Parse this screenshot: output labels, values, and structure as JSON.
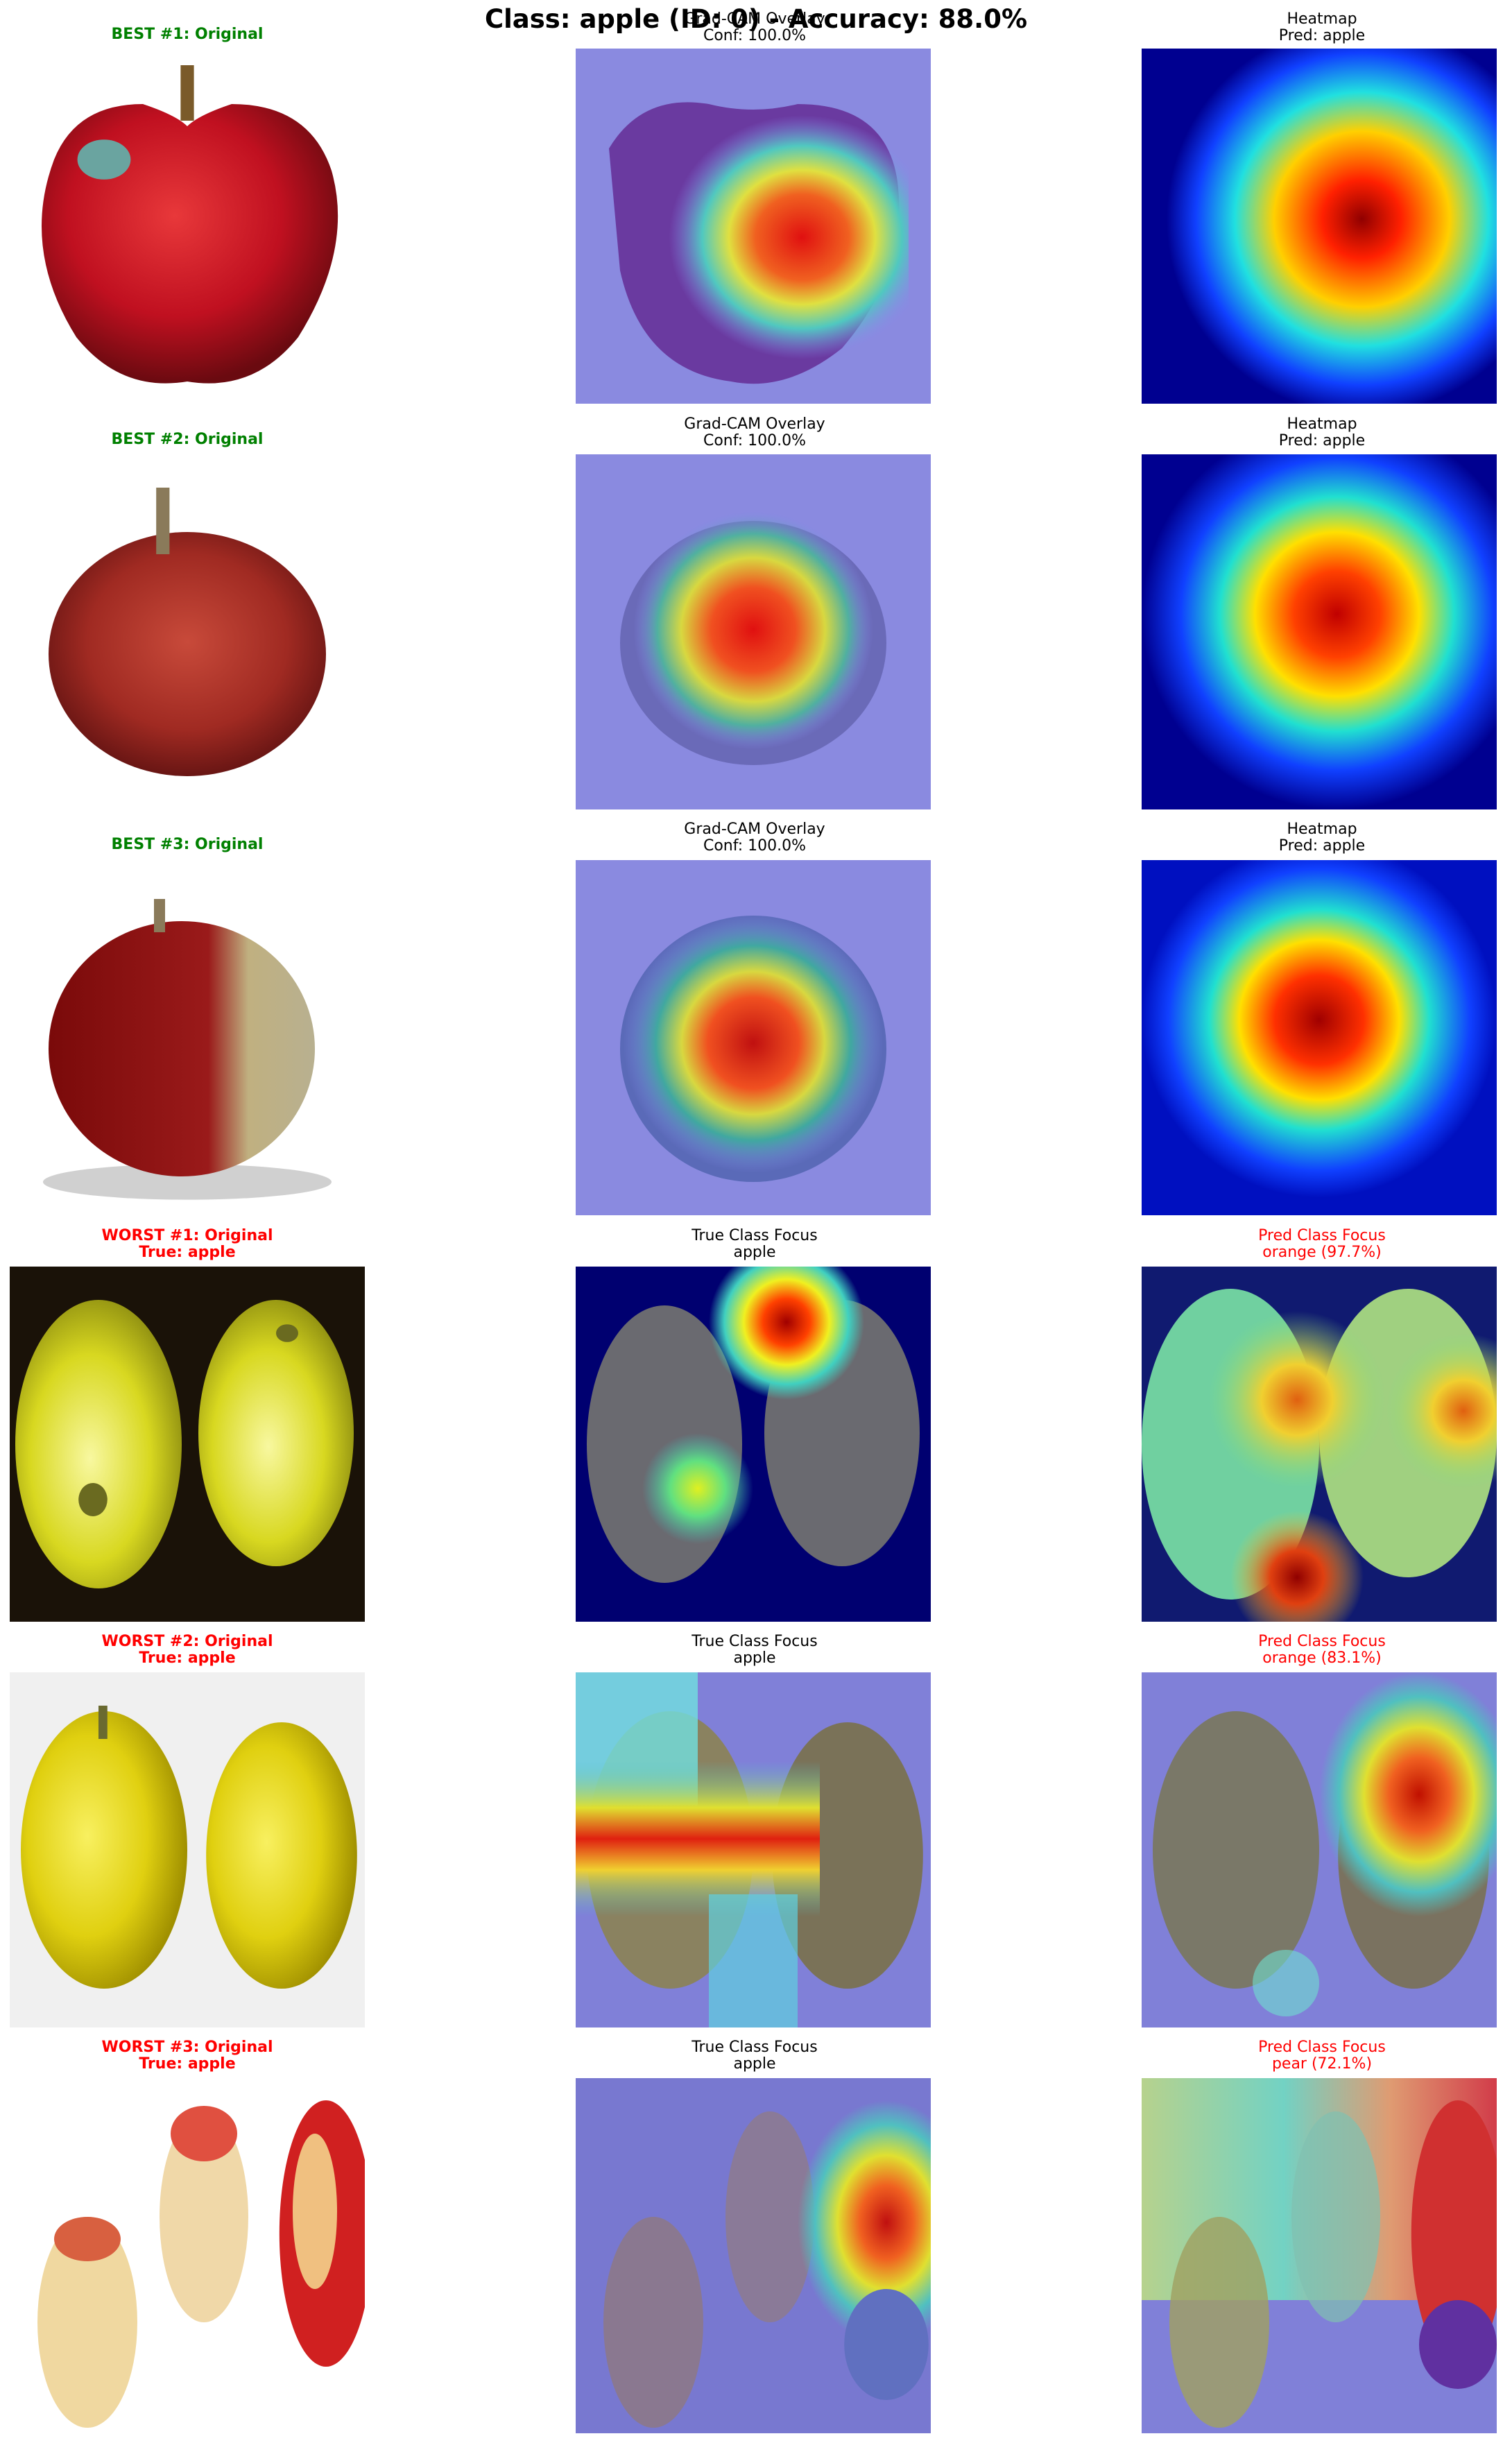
{
  "figure": {
    "suptitle": "Class: apple (ID: 0) - Accuracy: 88.0%"
  },
  "rows": [
    {
      "original_title": "BEST #1: Original",
      "middle_title": "Grad-CAM Overlay\nConf: 100.0%",
      "right_title": "Heatmap\nPred: apple"
    },
    {
      "original_title": "BEST #2: Original",
      "middle_title": "Grad-CAM Overlay\nConf: 100.0%",
      "right_title": "Heatmap\nPred: apple"
    },
    {
      "original_title": "BEST #3: Original",
      "middle_title": "Grad-CAM Overlay\nConf: 100.0%",
      "right_title": "Heatmap\nPred: apple"
    },
    {
      "original_title": "WORST #1: Original\nTrue: apple",
      "middle_title": "True Class Focus\napple",
      "right_title": "Pred Class Focus\norange (97.7%)"
    },
    {
      "original_title": "WORST #2: Original\nTrue: apple",
      "middle_title": "True Class Focus\napple",
      "right_title": "Pred Class Focus\norange (83.1%)"
    },
    {
      "original_title": "WORST #3: Original\nTrue: apple",
      "middle_title": "True Class Focus\napple",
      "right_title": "Pred Class Focus\npear (72.1%)"
    }
  ],
  "colors": {
    "best_title": "#008000",
    "worst_title": "#ff0000",
    "jet_low": "#00008f",
    "jet_high": "#800000"
  }
}
